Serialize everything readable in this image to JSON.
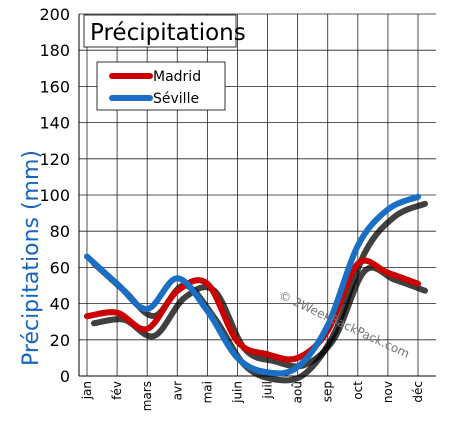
{
  "chart_data": {
    "type": "line",
    "title": "Précipitations",
    "ylabel": "Précipitations (mm)",
    "xlabel": "",
    "categories": [
      "jan",
      "fév",
      "mars",
      "avr",
      "mai",
      "juin",
      "juil",
      "aoû",
      "sep",
      "oct",
      "nov",
      "déc"
    ],
    "ylim": [
      0,
      200
    ],
    "yticks": [
      0,
      20,
      40,
      60,
      80,
      100,
      120,
      140,
      160,
      180,
      200
    ],
    "grid": true,
    "legend_position": "top-left",
    "series": [
      {
        "name": "Madrid",
        "color": "#cc0000",
        "values": [
          33,
          35,
          26,
          47,
          51,
          19,
          12,
          10,
          25,
          62,
          57,
          51
        ]
      },
      {
        "name": "Séville",
        "color": "#1a6fc4",
        "values": [
          66,
          51,
          37,
          54,
          36,
          10,
          2,
          5,
          28,
          72,
          92,
          99
        ]
      }
    ],
    "watermark": "© 2WeekBackPack.com"
  }
}
